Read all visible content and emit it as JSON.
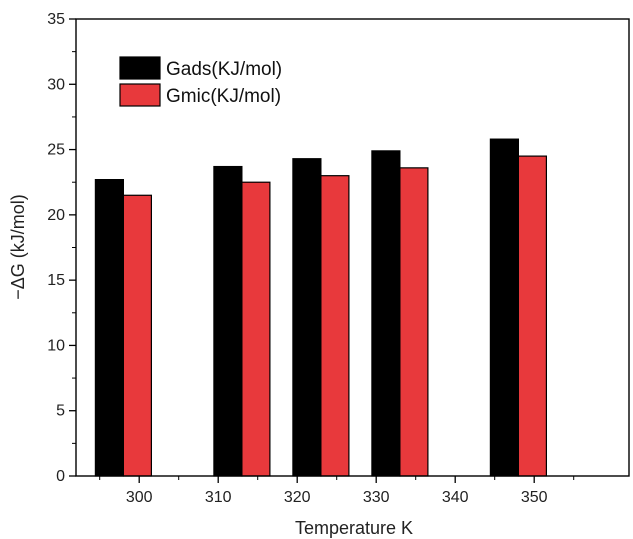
{
  "chart_data": {
    "type": "bar",
    "xlabel": "Temperature K",
    "ylabel": "−ΔG (kJ/mol)",
    "x_ticks": [
      300,
      310,
      320,
      330,
      340,
      350
    ],
    "xlim": [
      292,
      362
    ],
    "ylim": [
      0,
      35
    ],
    "y_ticks": [
      0,
      5,
      10,
      15,
      20,
      25,
      30,
      35
    ],
    "grid": false,
    "legend_position": "top-left",
    "x": [
      298,
      313,
      323,
      333,
      348
    ],
    "series": [
      {
        "name": "Gads(KJ/mol)",
        "color": "#000000",
        "values": [
          22.7,
          23.7,
          24.3,
          24.9,
          25.8
        ]
      },
      {
        "name": "Gmic(KJ/mol)",
        "color": "#e8393c",
        "values": [
          21.5,
          22.5,
          23.0,
          23.6,
          24.5
        ]
      }
    ]
  }
}
